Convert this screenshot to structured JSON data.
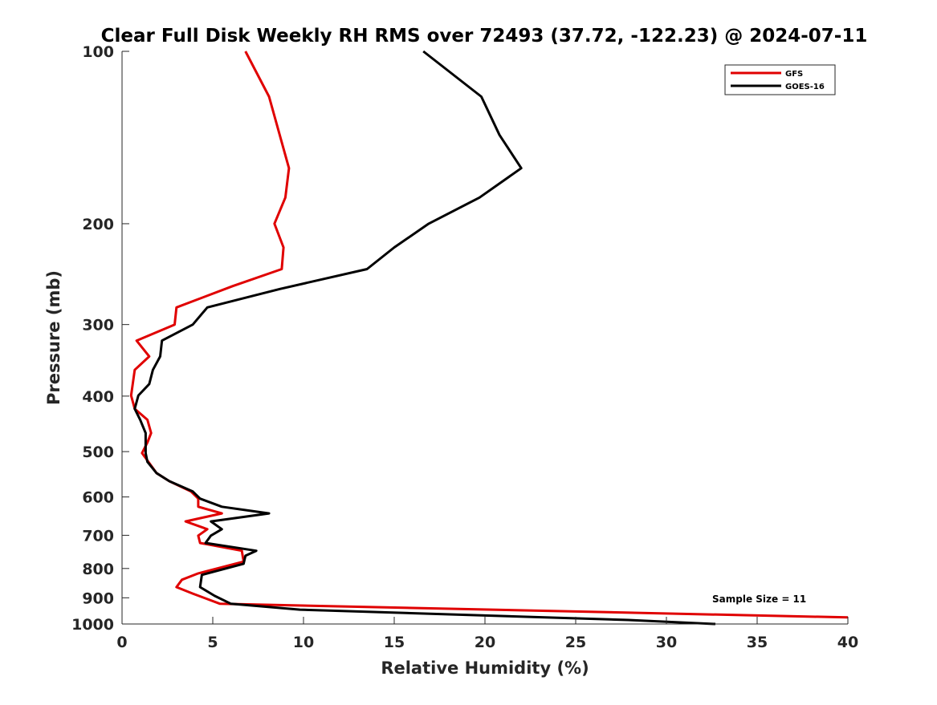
{
  "chart_data": {
    "type": "line",
    "title": "Clear Full Disk Weekly RH RMS over 72493 (37.72, -122.23) @ 2024-07-11",
    "xlabel": "Relative Humidity (%)",
    "ylabel": "Pressure (mb)",
    "xlim": [
      0,
      40
    ],
    "ylim": [
      100,
      1000
    ],
    "yscale": "log",
    "yreversed": true,
    "grid": false,
    "legend_position": "top-right",
    "xticks": [
      "0",
      "5",
      "10",
      "15",
      "20",
      "25",
      "30",
      "35",
      "40"
    ],
    "xtick_values": [
      0,
      5,
      10,
      15,
      20,
      25,
      30,
      35,
      40
    ],
    "yticks": [
      "100",
      "200",
      "300",
      "400",
      "500",
      "600",
      "700",
      "800",
      "900",
      "1000"
    ],
    "ytick_values": [
      100,
      200,
      300,
      400,
      500,
      600,
      700,
      800,
      900,
      1000
    ],
    "annotation": "Sample Size = 11",
    "series": [
      {
        "name": "GFS",
        "color": "#e00000",
        "pressure": [
          100,
          120,
          160,
          180,
          200,
          220,
          240,
          257,
          280,
          300,
          320,
          341,
          360,
          399,
          421,
          440,
          464,
          482,
          503,
          545,
          563,
          587,
          604,
          624,
          641,
          662,
          683,
          701,
          722,
          745,
          778,
          816,
          837,
          862,
          885,
          922,
          974
        ],
        "rh": [
          6.8,
          8.1,
          9.2,
          9.0,
          8.4,
          8.9,
          8.8,
          6.1,
          3.0,
          2.9,
          0.8,
          1.5,
          0.7,
          0.5,
          0.7,
          1.4,
          1.6,
          1.4,
          1.1,
          1.9,
          2.6,
          3.8,
          4.2,
          4.2,
          5.5,
          3.5,
          4.7,
          4.2,
          4.3,
          6.6,
          6.7,
          4.2,
          3.3,
          3.0,
          3.9,
          5.4,
          40.0
        ]
      },
      {
        "name": "GOES-16",
        "color": "#000000",
        "pressure": [
          100,
          120,
          140,
          160,
          180,
          200,
          220,
          240,
          260,
          280,
          300,
          320,
          341,
          360,
          381,
          399,
          421,
          440,
          464,
          503,
          521,
          545,
          563,
          587,
          604,
          624,
          641,
          662,
          683,
          701,
          722,
          745,
          760,
          785,
          821,
          862,
          893,
          922,
          944,
          984,
          1000
        ],
        "rh": [
          16.6,
          19.8,
          20.8,
          22.0,
          19.7,
          16.9,
          15.0,
          13.5,
          8.7,
          4.7,
          3.9,
          2.2,
          2.1,
          1.7,
          1.5,
          0.9,
          0.7,
          1.0,
          1.3,
          1.3,
          1.4,
          1.9,
          2.6,
          3.9,
          4.3,
          5.5,
          8.1,
          4.9,
          5.5,
          4.9,
          4.6,
          7.4,
          6.8,
          6.7,
          4.4,
          4.3,
          5.1,
          6.0,
          9.8,
          27.9,
          32.7
        ]
      }
    ]
  }
}
